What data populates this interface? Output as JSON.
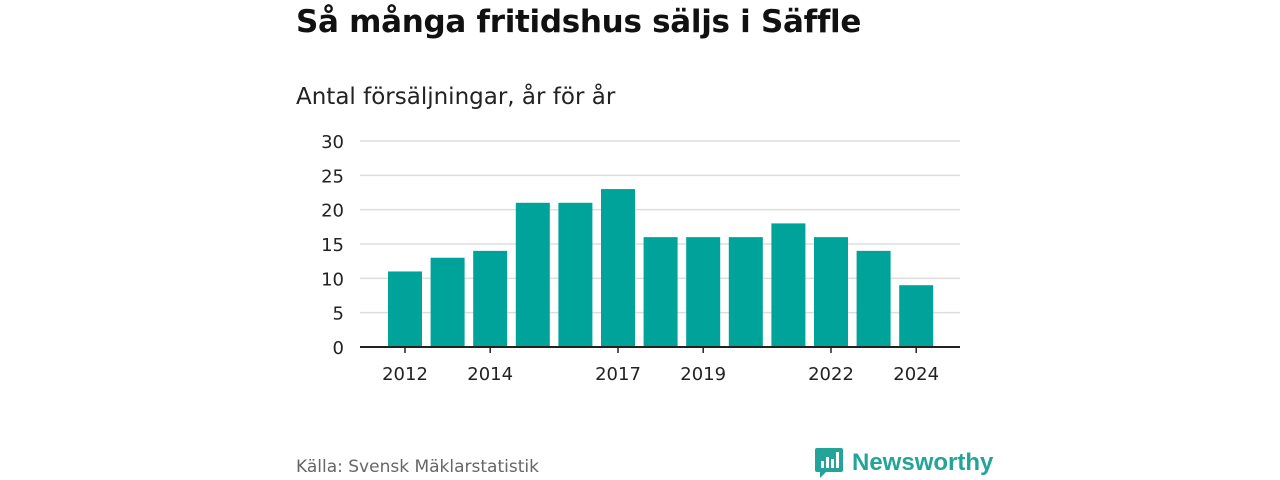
{
  "header": {
    "title": "Så många fritidshus säljs i Säffle",
    "subtitle": "Antal försäljningar, år för år"
  },
  "footer": {
    "source": "Källa: Svensk Mäklarstatistik",
    "brand": "Newsworthy",
    "brand_icon": "newsworthy-logo-icon"
  },
  "colors": {
    "bar": "#00a39a",
    "grid": "#dddddd",
    "axis": "#222222",
    "brand": "#23a498"
  },
  "chart_data": {
    "type": "bar",
    "title": "Så många fritidshus säljs i Säffle",
    "subtitle": "Antal försäljningar, år för år",
    "categories": [
      2012,
      2013,
      2014,
      2015,
      2016,
      2017,
      2018,
      2019,
      2020,
      2021,
      2022,
      2023,
      2024
    ],
    "values": [
      11,
      13,
      14,
      21,
      21,
      23,
      16,
      16,
      16,
      18,
      16,
      14,
      9
    ],
    "x_tick_labels": [
      "2012",
      "2014",
      "2017",
      "2019",
      "2022",
      "2024"
    ],
    "y_ticks": [
      0,
      5,
      10,
      15,
      20,
      25,
      30
    ],
    "ylim": [
      0,
      30
    ],
    "xlabel": "",
    "ylabel": "",
    "grid": true,
    "legend": "none"
  }
}
